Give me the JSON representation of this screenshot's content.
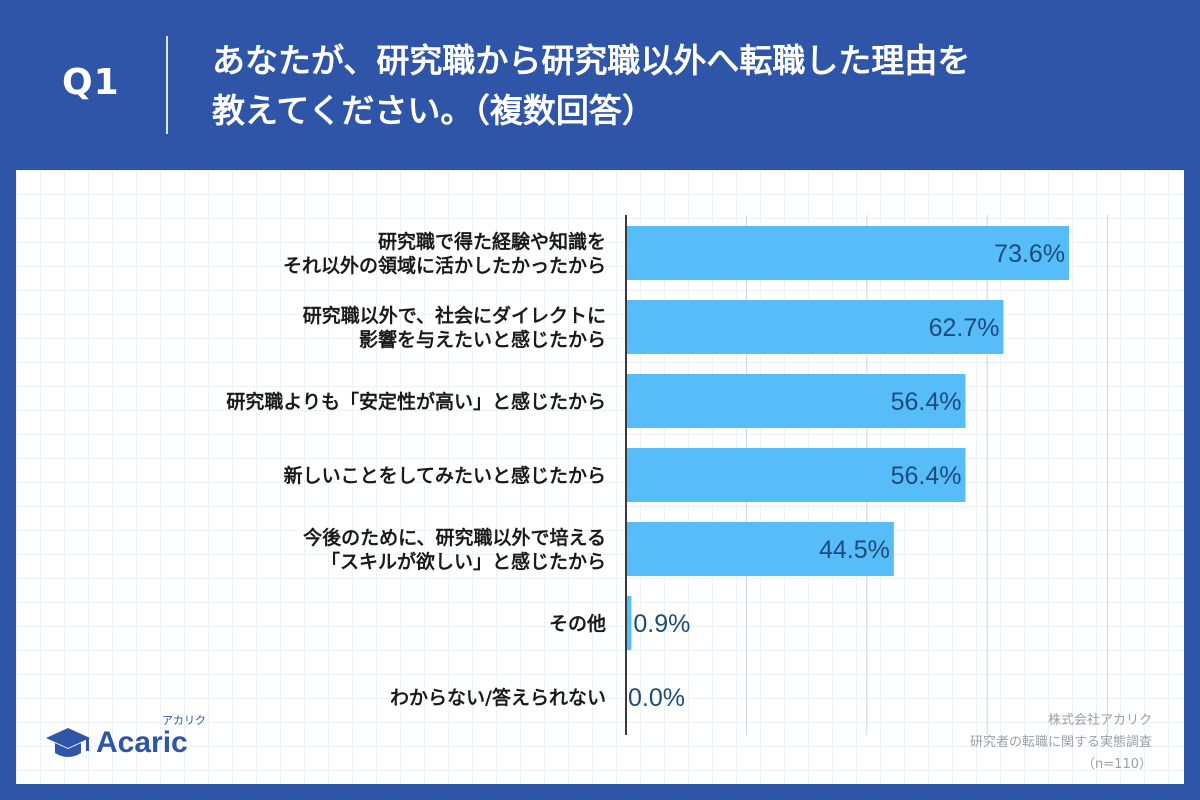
{
  "header": {
    "question_label": "Q1",
    "title_line1": "あなたが、研究職から研究職以外へ転職した理由を",
    "title_line2": "教えてください。（複数回答）"
  },
  "chart_data": {
    "type": "bar",
    "orientation": "horizontal",
    "categories": [
      [
        "研究職で得た経験や知識を",
        "それ以外の領域に活かしたかったから"
      ],
      [
        "研究職以外で、社会にダイレクトに",
        "影響を与えたいと感じたから"
      ],
      [
        "研究職よりも「安定性が高い」と感じたから"
      ],
      [
        "新しいことをしてみたいと感じたから"
      ],
      [
        "今後のために、研究職以外で培える",
        "「スキルが欲しい」と感じたから"
      ],
      [
        "その他"
      ],
      [
        "わからない/答えられない"
      ]
    ],
    "values": [
      73.6,
      62.7,
      56.4,
      56.4,
      44.5,
      0.9,
      0.0
    ],
    "value_labels": [
      "73.6%",
      "62.7%",
      "56.4%",
      "56.4%",
      "44.5%",
      "0.9%",
      "0.0%"
    ],
    "xlim": [
      0,
      80
    ],
    "grid": true,
    "colors": {
      "bar": "#56bdf9",
      "value_text": "#1d4c7c",
      "axis": "#3a3a3a",
      "grid": "#cfd4da"
    }
  },
  "footer": {
    "logo_text": "Acaric",
    "logo_kana": "アカリク",
    "logo_icon": "graduation-cap-icon",
    "source_lines": [
      "株式会社アカリク",
      "研究者の転職に関する実態調査",
      "（n=110）"
    ]
  }
}
